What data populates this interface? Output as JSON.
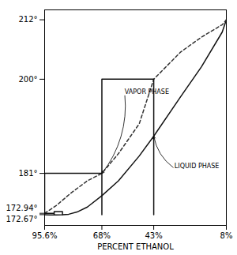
{
  "chart_data": {
    "type": "line",
    "xlabel": "PERCENT ETHANOL",
    "xlim": [
      95.6,
      8
    ],
    "ylim": [
      170.5,
      214
    ],
    "xticks": [
      {
        "value": 95.6,
        "label": "95.6%"
      },
      {
        "value": 68,
        "label": "68%"
      },
      {
        "value": 43,
        "label": "43%"
      },
      {
        "value": 8,
        "label": "8%"
      }
    ],
    "yticks": [
      {
        "value": 172.67,
        "label": "172.67°"
      },
      {
        "value": 172.94,
        "label": "172.94°"
      },
      {
        "value": 181,
        "label": "181°"
      },
      {
        "value": 200,
        "label": "200°"
      },
      {
        "value": 212,
        "label": "212°"
      }
    ],
    "grid": false,
    "series": [
      {
        "type": "line",
        "color": "#111111",
        "line_style": "solid",
        "x": [
          95.6,
          93,
          90,
          87,
          84,
          80,
          75,
          68,
          60,
          50,
          43,
          30,
          20,
          10,
          8
        ],
        "values": [
          172.67,
          172.63,
          172.62,
          172.65,
          172.75,
          173.2,
          174.2,
          176.5,
          179.5,
          184.5,
          188.5,
          196.5,
          202.5,
          209.5,
          212.0
        ]
      },
      {
        "type": "line",
        "color": "#333333",
        "line_style": "dashed",
        "x": [
          95.6,
          90,
          83,
          75,
          68,
          60,
          50,
          43,
          30,
          20,
          10,
          8
        ],
        "values": [
          172.94,
          174.5,
          177.0,
          179.5,
          181.0,
          185.0,
          191.0,
          200.0,
          205.5,
          208.5,
          211.0,
          212.0
        ]
      },
      {
        "type": "line",
        "color": "#111111",
        "line_style": "solid",
        "x": [
          95.6,
          95.6,
          91,
          null,
          91,
          91,
          91,
          87,
          87,
          null,
          95.6,
          95.6,
          68,
          68,
          null,
          68,
          68,
          43,
          43
        ],
        "values": [
          172.67,
          172.94,
          172.94,
          null,
          172.63,
          172.94,
          173.3,
          173.3,
          172.65,
          null,
          172.67,
          181,
          181,
          172.67,
          null,
          181,
          200,
          200,
          172.67
        ]
      }
    ],
    "annotations": [
      {
        "text": "VAPOR PHASE",
        "x": 57,
        "y": 197,
        "arrow_x": 68,
        "arrow_y": 181
      },
      {
        "text": "LIQUID PHASE",
        "x": 33,
        "y": 182,
        "arrow_x": 43,
        "arrow_y": 188.5
      }
    ]
  }
}
